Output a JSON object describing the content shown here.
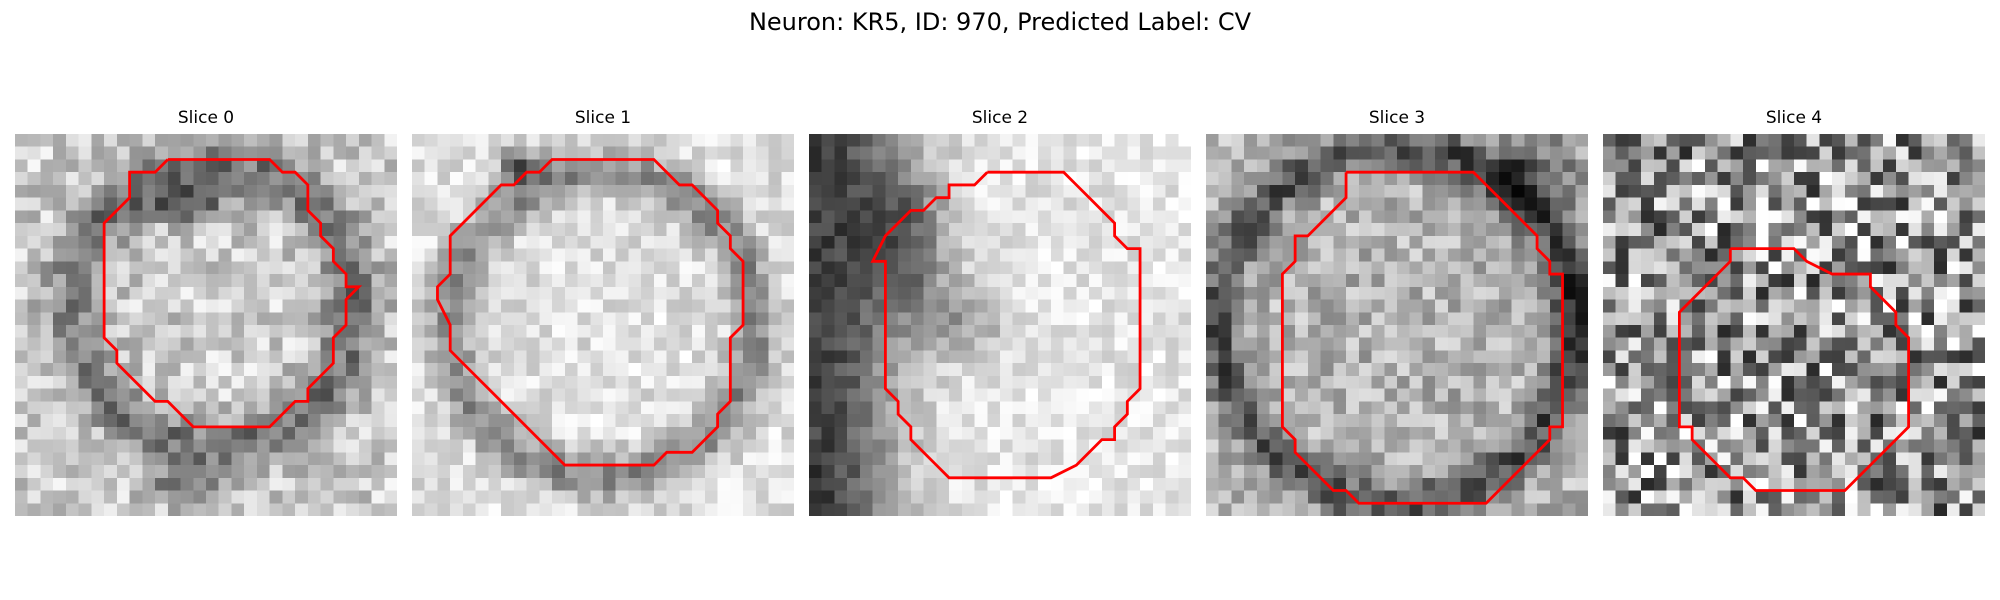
{
  "figure": {
    "title": "Neuron: KR5, ID: 970, Predicted Label: CV"
  },
  "panels": [
    {
      "title": "Slice 0",
      "seed": 11,
      "style": "ring-off"
    },
    {
      "title": "Slice 1",
      "seed": 23,
      "style": "ring"
    },
    {
      "title": "Slice 2",
      "seed": 37,
      "style": "dark-left"
    },
    {
      "title": "Slice 3",
      "seed": 41,
      "style": "ring-dark"
    },
    {
      "title": "Slice 4",
      "seed": 53,
      "style": "noisy"
    }
  ],
  "contour_color": "#ff0000",
  "colormap": "gray"
}
